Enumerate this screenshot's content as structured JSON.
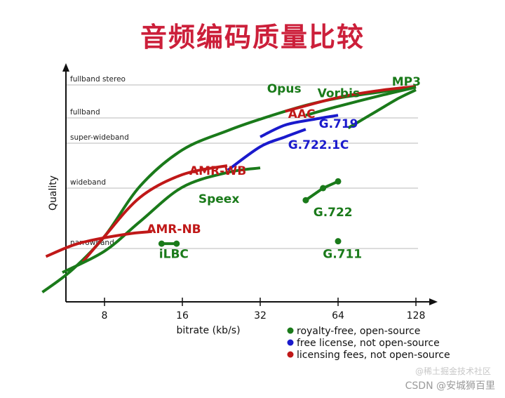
{
  "title": "音频编码质量比较",
  "watermark": "CSDN @安城狮百里",
  "watermark_faint": "@稀土掘金技术社区",
  "colors": {
    "royalty_free": "#1a7a1a",
    "free_license": "#1a1acc",
    "licensing_fees": "#c01818",
    "axis": "#111111",
    "grid": "#b8b8b8"
  },
  "chart_data": {
    "type": "line",
    "xlabel": "bitrate (kb/s)",
    "ylabel": "Quality",
    "x_scale": "log2",
    "x_ticks": [
      8,
      16,
      32,
      64,
      128
    ],
    "y_levels": [
      "narrowband",
      "wideband",
      "super-wideband",
      "fullband",
      "fullband stereo"
    ],
    "legend": [
      {
        "label": "royalty-free, open-source",
        "color": "#1a7a1a"
      },
      {
        "label": "free license, not open-source",
        "color": "#1a1acc"
      },
      {
        "label": "licensing fees, not open-source",
        "color": "#c01818"
      }
    ],
    "series": [
      {
        "name": "Opus",
        "color": "#1a7a1a",
        "kind": "curve",
        "points": [
          [
            4.6,
            0.18
          ],
          [
            6,
            0.6
          ],
          [
            8,
            1.2
          ],
          [
            11,
            2.05
          ],
          [
            16,
            2.85
          ],
          [
            24,
            3.5
          ],
          [
            32,
            3.95
          ],
          [
            48,
            4.38
          ],
          [
            64,
            4.6
          ],
          [
            96,
            4.8
          ],
          [
            128,
            4.95
          ]
        ]
      },
      {
        "name": "AAC",
        "color": "#c01818",
        "kind": "curve",
        "points": [
          [
            40,
            4.2
          ],
          [
            64,
            4.62
          ],
          [
            96,
            4.85
          ],
          [
            128,
            4.95
          ]
        ]
      },
      {
        "name": "Vorbis",
        "color": "#1a7a1a",
        "kind": "curve",
        "points": [
          [
            48,
            4.08
          ],
          [
            64,
            4.35
          ],
          [
            96,
            4.7
          ],
          [
            128,
            4.93
          ]
        ]
      },
      {
        "name": "MP3",
        "color": "#1a7a1a",
        "kind": "curve",
        "points": [
          [
            70,
            3.6
          ],
          [
            90,
            4.2
          ],
          [
            110,
            4.6
          ],
          [
            128,
            4.85
          ]
        ]
      },
      {
        "name": "G.719",
        "color": "#1a1acc",
        "kind": "curve",
        "points": [
          [
            32,
            3.25
          ],
          [
            40,
            3.72
          ],
          [
            52,
            3.95
          ],
          [
            64,
            4.08
          ]
        ]
      },
      {
        "name": "G.722.1C",
        "color": "#1a1acc",
        "kind": "curve",
        "points": [
          [
            24,
            2.4
          ],
          [
            32,
            2.92
          ],
          [
            40,
            3.25
          ],
          [
            48,
            3.55
          ]
        ]
      },
      {
        "name": "AMR-WB",
        "color": "#c01818",
        "kind": "curve",
        "points": [
          [
            6.6,
            0.75
          ],
          [
            8,
            1.2
          ],
          [
            11,
            1.85
          ],
          [
            16,
            2.3
          ],
          [
            23.85,
            2.5
          ]
        ]
      },
      {
        "name": "Speex",
        "color": "#1a7a1a",
        "kind": "curve",
        "points": [
          [
            5.5,
            0.55
          ],
          [
            8,
            0.95
          ],
          [
            11,
            1.45
          ],
          [
            16,
            2.02
          ],
          [
            24,
            2.35
          ],
          [
            32,
            2.45
          ]
        ]
      },
      {
        "name": "AMR-NB",
        "color": "#c01818",
        "kind": "curve",
        "points": [
          [
            4.75,
            0.85
          ],
          [
            6,
            1.05
          ],
          [
            7.4,
            1.15
          ],
          [
            10.2,
            1.25
          ],
          [
            12.2,
            1.28
          ]
        ]
      },
      {
        "name": "iLBC",
        "color": "#1a7a1a",
        "kind": "dots",
        "points": [
          [
            13.3,
            1.08
          ],
          [
            15.2,
            1.08
          ]
        ]
      },
      {
        "name": "G.722",
        "color": "#1a7a1a",
        "kind": "dots",
        "points": [
          [
            48,
            1.8
          ],
          [
            56,
            2.0
          ],
          [
            64,
            2.15
          ]
        ]
      },
      {
        "name": "G.711",
        "color": "#1a7a1a",
        "kind": "dots",
        "points": [
          [
            64,
            1.12
          ]
        ]
      }
    ]
  }
}
